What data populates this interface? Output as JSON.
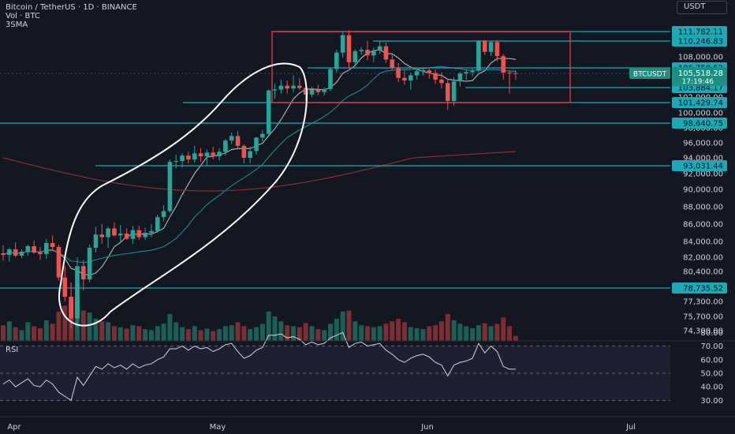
{
  "header": {
    "title": "Bitcoin / TetherUS · 1D · BINANCE",
    "volume_label": "Vol · BTC",
    "indicator_label": "3SMA",
    "unit_button": "USDT"
  },
  "rsi_pane": {
    "label": "RSI"
  },
  "colors": {
    "background": "#131722",
    "up": "#26a69a",
    "down": "#ef5350",
    "up_volume": "#1d5e58",
    "down_volume": "#7c2e34",
    "level_line": "#1ea7b5",
    "box": "#f23645",
    "sma_fast": "#b2b5be",
    "sma_mid": "#1c8a9c",
    "sma_slow": "#8b2f3a",
    "rsi_line": "#d1d4dc",
    "annotation": "#ffffff"
  },
  "chart_data": {
    "type": "candlestick",
    "symbol": "BTCUSDT",
    "y_axis_ticks": [
      74300,
      75700,
      77300,
      80400,
      82000,
      84000,
      86000,
      88000,
      90000,
      92000,
      94000,
      96000,
      98000,
      100000,
      102000,
      108000
    ],
    "y_axis_tick_labels": [
      "74,300.00",
      "75,700.00",
      "77,300.00",
      "80,400.00",
      "82,000.00",
      "84,000.00",
      "86,000.00",
      "88,000.00",
      "90,000.00",
      "92,000.00",
      "94,000.00",
      "96,000.00",
      "98,000.00",
      "100,000.00",
      "102,000.00",
      "108,000.00"
    ],
    "x_axis_labels": [
      "Apr",
      "May",
      "Jun",
      "Jul"
    ],
    "price_levels": [
      {
        "value": 111782.11,
        "label": "111,782.11"
      },
      {
        "value": 110246.83,
        "label": "110,246.83"
      },
      {
        "value": 106758.52,
        "label": "106,758.52"
      },
      {
        "value": 103884.17,
        "label": "103,884.17"
      },
      {
        "value": 101429.74,
        "label": "101,429.74"
      },
      {
        "value": 98640.75,
        "label": "98,640.75"
      },
      {
        "value": 93031.44,
        "label": "93,031.44"
      },
      {
        "value": 78735.52,
        "label": "78,735.52"
      }
    ],
    "current_price": {
      "symbol": "BTCUSDT",
      "price": 105518.28,
      "label": "105,518.28",
      "countdown": "17:19:46"
    },
    "candles": [
      {
        "o": 82500,
        "h": 83500,
        "l": 81600,
        "c": 82300
      },
      {
        "o": 82300,
        "h": 83200,
        "l": 81500,
        "c": 83000
      },
      {
        "o": 83000,
        "h": 83900,
        "l": 82000,
        "c": 82200
      },
      {
        "o": 82200,
        "h": 83000,
        "l": 81900,
        "c": 82700
      },
      {
        "o": 82700,
        "h": 83600,
        "l": 82200,
        "c": 83400
      },
      {
        "o": 83400,
        "h": 84100,
        "l": 82400,
        "c": 82600
      },
      {
        "o": 82600,
        "h": 83300,
        "l": 81700,
        "c": 82400
      },
      {
        "o": 82400,
        "h": 84300,
        "l": 81800,
        "c": 83800
      },
      {
        "o": 83800,
        "h": 84700,
        "l": 82900,
        "c": 83300
      },
      {
        "o": 83300,
        "h": 83600,
        "l": 79500,
        "c": 79800
      },
      {
        "o": 79800,
        "h": 81000,
        "l": 77300,
        "c": 77800
      },
      {
        "o": 77800,
        "h": 79300,
        "l": 74500,
        "c": 75500
      },
      {
        "o": 75500,
        "h": 82000,
        "l": 74600,
        "c": 81000
      },
      {
        "o": 81000,
        "h": 81700,
        "l": 78500,
        "c": 79600
      },
      {
        "o": 79600,
        "h": 83600,
        "l": 79300,
        "c": 83200
      },
      {
        "o": 83200,
        "h": 85700,
        "l": 82600,
        "c": 84800
      },
      {
        "o": 84800,
        "h": 86000,
        "l": 83700,
        "c": 84500
      },
      {
        "o": 84500,
        "h": 85700,
        "l": 83200,
        "c": 85500
      },
      {
        "o": 85500,
        "h": 86200,
        "l": 84600,
        "c": 84700
      },
      {
        "o": 84700,
        "h": 85900,
        "l": 83800,
        "c": 84900
      },
      {
        "o": 84900,
        "h": 85500,
        "l": 84200,
        "c": 84300
      },
      {
        "o": 84300,
        "h": 85800,
        "l": 83700,
        "c": 85300
      },
      {
        "o": 85300,
        "h": 85800,
        "l": 84200,
        "c": 84500
      },
      {
        "o": 84500,
        "h": 85600,
        "l": 84200,
        "c": 85000
      },
      {
        "o": 85000,
        "h": 86000,
        "l": 84500,
        "c": 85200
      },
      {
        "o": 85200,
        "h": 87100,
        "l": 85000,
        "c": 86800
      },
      {
        "o": 86800,
        "h": 88200,
        "l": 86300,
        "c": 87500
      },
      {
        "o": 87500,
        "h": 93800,
        "l": 87300,
        "c": 93500
      },
      {
        "o": 93500,
        "h": 94400,
        "l": 92700,
        "c": 93600
      },
      {
        "o": 93600,
        "h": 94600,
        "l": 92800,
        "c": 94300
      },
      {
        "o": 94300,
        "h": 94800,
        "l": 93300,
        "c": 93800
      },
      {
        "o": 93800,
        "h": 95600,
        "l": 93400,
        "c": 94600
      },
      {
        "o": 94600,
        "h": 95300,
        "l": 93500,
        "c": 94200
      },
      {
        "o": 94200,
        "h": 95100,
        "l": 93100,
        "c": 94700
      },
      {
        "o": 94700,
        "h": 95500,
        "l": 93800,
        "c": 94200
      },
      {
        "o": 94200,
        "h": 95300,
        "l": 93700,
        "c": 94800
      },
      {
        "o": 94800,
        "h": 96500,
        "l": 94300,
        "c": 96300
      },
      {
        "o": 96300,
        "h": 97400,
        "l": 95800,
        "c": 96900
      },
      {
        "o": 96900,
        "h": 97600,
        "l": 95100,
        "c": 95600
      },
      {
        "o": 95600,
        "h": 95800,
        "l": 93300,
        "c": 94000
      },
      {
        "o": 94000,
        "h": 95500,
        "l": 93300,
        "c": 94900
      },
      {
        "o": 94900,
        "h": 96800,
        "l": 94400,
        "c": 96700
      },
      {
        "o": 96700,
        "h": 97700,
        "l": 96200,
        "c": 97200
      },
      {
        "o": 97200,
        "h": 103500,
        "l": 97000,
        "c": 103300
      },
      {
        "o": 103300,
        "h": 104300,
        "l": 101800,
        "c": 103500
      },
      {
        "o": 103500,
        "h": 104800,
        "l": 102700,
        "c": 104100
      },
      {
        "o": 104100,
        "h": 104700,
        "l": 102700,
        "c": 103700
      },
      {
        "o": 103700,
        "h": 105300,
        "l": 102900,
        "c": 104100
      },
      {
        "o": 104100,
        "h": 105000,
        "l": 103400,
        "c": 103800
      },
      {
        "o": 103800,
        "h": 104400,
        "l": 101600,
        "c": 102500
      },
      {
        "o": 102500,
        "h": 104000,
        "l": 102000,
        "c": 103500
      },
      {
        "o": 103500,
        "h": 104200,
        "l": 102400,
        "c": 103000
      },
      {
        "o": 103000,
        "h": 103900,
        "l": 102300,
        "c": 103600
      },
      {
        "o": 103600,
        "h": 106800,
        "l": 103200,
        "c": 106500
      },
      {
        "o": 106500,
        "h": 109000,
        "l": 105800,
        "c": 108600
      },
      {
        "o": 108600,
        "h": 111800,
        "l": 107900,
        "c": 111200
      },
      {
        "o": 111200,
        "h": 112000,
        "l": 106600,
        "c": 107400
      },
      {
        "o": 107400,
        "h": 109100,
        "l": 106900,
        "c": 108800
      },
      {
        "o": 108800,
        "h": 109400,
        "l": 108300,
        "c": 109000
      },
      {
        "o": 109000,
        "h": 110300,
        "l": 107600,
        "c": 108200
      },
      {
        "o": 108200,
        "h": 109300,
        "l": 107400,
        "c": 108900
      },
      {
        "o": 108900,
        "h": 110200,
        "l": 108400,
        "c": 109500
      },
      {
        "o": 109500,
        "h": 110000,
        "l": 107300,
        "c": 107700
      },
      {
        "o": 107700,
        "h": 108500,
        "l": 106300,
        "c": 106800
      },
      {
        "o": 106800,
        "h": 107300,
        "l": 104500,
        "c": 105000
      },
      {
        "o": 105000,
        "h": 106200,
        "l": 104200,
        "c": 104700
      },
      {
        "o": 104700,
        "h": 105700,
        "l": 103500,
        "c": 105300
      },
      {
        "o": 105300,
        "h": 106500,
        "l": 104800,
        "c": 106000
      },
      {
        "o": 106000,
        "h": 106800,
        "l": 105300,
        "c": 106200
      },
      {
        "o": 106200,
        "h": 106600,
        "l": 104900,
        "c": 105600
      },
      {
        "o": 105600,
        "h": 106400,
        "l": 104300,
        "c": 104800
      },
      {
        "o": 104800,
        "h": 105700,
        "l": 103700,
        "c": 104400
      },
      {
        "o": 104400,
        "h": 104900,
        "l": 100400,
        "c": 101600
      },
      {
        "o": 101600,
        "h": 105100,
        "l": 101000,
        "c": 104600
      },
      {
        "o": 104600,
        "h": 105900,
        "l": 104000,
        "c": 105500
      },
      {
        "o": 105500,
        "h": 106500,
        "l": 104800,
        "c": 105800
      },
      {
        "o": 105800,
        "h": 106500,
        "l": 105200,
        "c": 106100
      },
      {
        "o": 106100,
        "h": 110400,
        "l": 105800,
        "c": 110300
      },
      {
        "o": 110300,
        "h": 110400,
        "l": 108300,
        "c": 108700
      },
      {
        "o": 108700,
        "h": 110300,
        "l": 108100,
        "c": 110100
      },
      {
        "o": 110100,
        "h": 110400,
        "l": 107500,
        "c": 108100
      },
      {
        "o": 108100,
        "h": 108400,
        "l": 104800,
        "c": 105700
      },
      {
        "o": 105700,
        "h": 106300,
        "l": 102700,
        "c": 105600
      },
      {
        "o": 105600,
        "h": 106200,
        "l": 104800,
        "c": 105500
      }
    ],
    "volume": [
      32,
      40,
      28,
      22,
      38,
      30,
      26,
      42,
      35,
      60,
      72,
      80,
      95,
      62,
      58,
      45,
      40,
      38,
      30,
      28,
      25,
      32,
      30,
      24,
      22,
      30,
      35,
      55,
      38,
      28,
      24,
      30,
      22,
      25,
      20,
      24,
      30,
      32,
      38,
      30,
      24,
      28,
      35,
      60,
      50,
      40,
      32,
      30,
      28,
      36,
      30,
      24,
      22,
      35,
      45,
      60,
      62,
      40,
      32,
      30,
      28,
      30,
      35,
      40,
      45,
      38,
      28,
      26,
      24,
      30,
      32,
      40,
      55,
      42,
      35,
      30,
      26,
      32,
      36,
      30,
      35,
      48,
      30,
      10
    ],
    "rsi": {
      "ticks": [
        30,
        40,
        50,
        60,
        70,
        80
      ],
      "tick_labels": [
        "30.00",
        "40.00",
        "50.00",
        "60.00",
        "70.00",
        "80.00"
      ],
      "values": [
        42,
        45,
        40,
        43,
        46,
        41,
        40,
        45,
        42,
        36,
        33,
        30,
        47,
        41,
        48,
        55,
        53,
        57,
        54,
        56,
        53,
        57,
        54,
        56,
        57,
        60,
        62,
        68,
        68,
        70,
        67,
        70,
        68,
        69,
        66,
        68,
        71,
        72,
        66,
        61,
        63,
        67,
        69,
        78,
        78,
        79,
        76,
        77,
        75,
        71,
        73,
        71,
        72,
        76,
        78,
        80,
        69,
        72,
        73,
        70,
        71,
        72,
        67,
        64,
        60,
        58,
        61,
        63,
        64,
        62,
        58,
        56,
        48,
        56,
        58,
        59,
        61,
        72,
        65,
        70,
        66,
        55,
        53,
        53
      ]
    }
  }
}
